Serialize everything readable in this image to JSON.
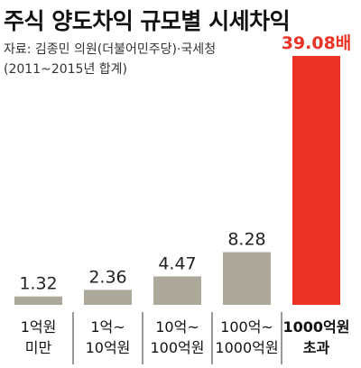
{
  "header": {
    "title": "주식 양도차익 규모별 시세차익",
    "source": "자료: 김종민 의원(더불어민주당)·국세청",
    "note": "(2011~2015년 합계)"
  },
  "colors": {
    "bar_default": "#ada99a",
    "bar_highlight": "#ec3125",
    "label_default": "#222222",
    "label_highlight": "#ec3125",
    "divider": "#333333"
  },
  "chart_data": {
    "type": "bar",
    "categories": [
      [
        "1억원",
        "미만"
      ],
      [
        "1억~",
        "10억원"
      ],
      [
        "10억~",
        "100억원"
      ],
      [
        "100억~",
        "1000억원"
      ],
      [
        "1000억원",
        "초과"
      ]
    ],
    "values": [
      1.32,
      2.36,
      4.47,
      8.28,
      39.08
    ],
    "value_labels": [
      "1.32",
      "2.36",
      "4.47",
      "8.28",
      "39.08배"
    ],
    "highlight_index": 4,
    "title": "",
    "xlabel": "",
    "ylabel": "",
    "ylim": [
      0,
      39.08
    ],
    "grid": false,
    "legend": "none"
  }
}
